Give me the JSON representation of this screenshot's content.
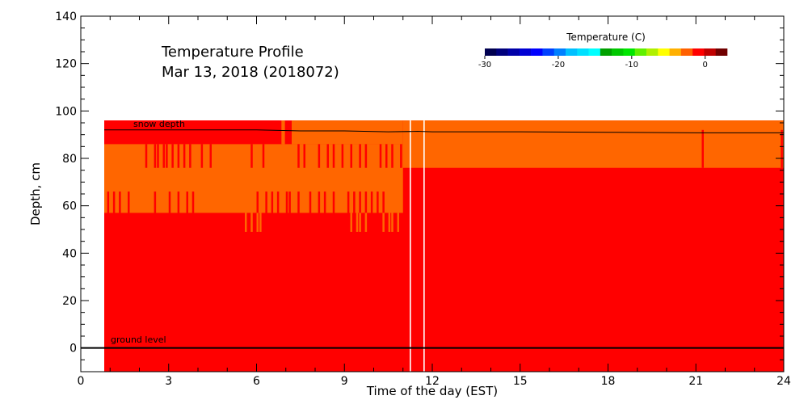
{
  "chart_data": {
    "type": "heatmap",
    "title_line1": "Temperature Profile",
    "title_line2": "Mar 13, 2018 (2018072)",
    "xlabel": "Time of the day (EST)",
    "ylabel": "Depth, cm",
    "xlim": [
      0,
      24
    ],
    "ylim": [
      -10,
      140
    ],
    "x_ticks": [
      0,
      3,
      6,
      9,
      12,
      15,
      18,
      21,
      24
    ],
    "y_ticks": [
      0,
      20,
      40,
      60,
      80,
      100,
      120,
      140
    ],
    "colorbar": {
      "label": "Temperature (C)",
      "range": [
        -30,
        3
      ],
      "ticks": [
        -30,
        -20,
        -10,
        0
      ],
      "colors": [
        "#000050",
        "#00007c",
        "#0000a8",
        "#0000d4",
        "#0000ff",
        "#0040ff",
        "#0080ff",
        "#00c0ff",
        "#00e0ff",
        "#00ffff",
        "#00a000",
        "#00c800",
        "#00e600",
        "#60f000",
        "#b0f000",
        "#ffff00",
        "#ffb000",
        "#ff6000",
        "#ff0000",
        "#c00000",
        "#700000"
      ]
    },
    "colors": {
      "warm": "#ff0000",
      "cool": "#ff6600",
      "gap": "#ffffff"
    },
    "data_start_hour": 0.8,
    "data_top_cm": 96,
    "data_bottom_cm": -10,
    "gaps_hours": [
      11.25,
      11.72
    ],
    "regions": [
      {
        "x0": 0.8,
        "x1": 6.8,
        "y0": 86,
        "y1": 96,
        "value": "warm"
      },
      {
        "x0": 0.8,
        "x1": 7.2,
        "y0": 57,
        "y1": 86,
        "value": "cool"
      },
      {
        "x0": 7.2,
        "x1": 11.0,
        "y0": 86,
        "y1": 96,
        "value": "cool"
      },
      {
        "x0": 7.2,
        "x1": 11.0,
        "y0": 57,
        "y1": 86,
        "value": "cool"
      },
      {
        "x0": 11.0,
        "x1": 24,
        "y0": 76,
        "y1": 96,
        "value": "cool"
      }
    ],
    "stripes": [
      {
        "hours": [
          2.2,
          2.5,
          2.6,
          2.8,
          2.9,
          3.1,
          3.3,
          3.5,
          3.7,
          4.1,
          4.4,
          5.8,
          6.2,
          7.4,
          7.6,
          8.1,
          8.4,
          8.6,
          8.9,
          9.2,
          9.5,
          9.7,
          10.2,
          10.4,
          10.6,
          10.9
        ],
        "y0": 76,
        "y1": 86,
        "value": "warm"
      },
      {
        "hours": [
          0.9,
          1.1,
          1.3,
          1.6,
          2.5,
          3.0,
          3.3,
          3.6,
          3.8,
          6.0,
          6.3,
          6.5,
          6.7,
          7.0,
          7.1,
          7.4,
          7.8,
          8.1,
          8.3,
          8.6,
          9.1,
          9.3,
          9.5,
          9.7,
          9.9,
          10.1,
          10.3
        ],
        "y0": 57,
        "y1": 66,
        "value": "warm"
      },
      {
        "hours": [
          5.6,
          5.8,
          6.0,
          6.1,
          9.2,
          9.4,
          9.5,
          9.7,
          10.3,
          10.5,
          10.6,
          10.8
        ],
        "y0": 49,
        "y1": 57,
        "value": "cool"
      },
      {
        "hours": [
          6.85,
          6.9,
          21.2
        ],
        "y0": 86,
        "y1": 96,
        "value": "cool"
      },
      {
        "hours": [
          21.2,
          23.9
        ],
        "y0": 76,
        "y1": 92,
        "value": "warm"
      }
    ],
    "snow_depth_line": {
      "label": "snow depth",
      "x": [
        0.8,
        3,
        6,
        7.5,
        9,
        10.5,
        11.5,
        12,
        15,
        18,
        21,
        24
      ],
      "y": [
        92,
        92,
        92,
        91.6,
        91.6,
        91.2,
        91.4,
        91.2,
        91.2,
        91,
        90.8,
        90.8
      ]
    },
    "ground_line": {
      "label": "ground level",
      "y": 0
    }
  }
}
